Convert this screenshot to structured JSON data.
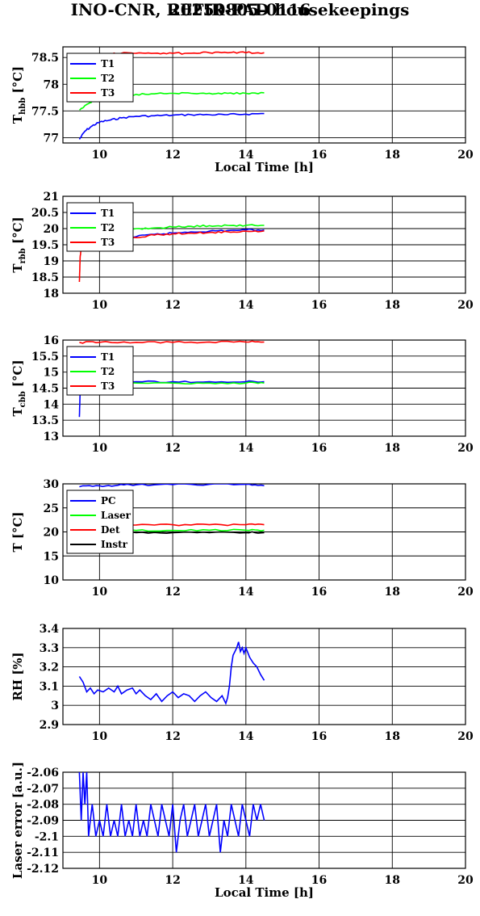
{
  "title": "INO-CNR, REFIR-PAD housekeepings",
  "subtitle": "20250805-0116",
  "chart_data": [
    {
      "type": "line",
      "ylabel_main": "T",
      "ylabel_sub": "hbb",
      "ylabel_unit": "[°C]",
      "xlabel": "Local Time [h]",
      "xlim": [
        9,
        20
      ],
      "ylim": [
        76.9,
        78.7
      ],
      "xticks": [
        "10",
        "12",
        "14",
        "16",
        "18",
        "20"
      ],
      "yticks": [
        "77",
        "77.5",
        "78",
        "78.5"
      ],
      "ytick_values": [
        77,
        77.5,
        78,
        78.5
      ],
      "grid": true,
      "legend": "top-left",
      "series": [
        {
          "name": "T1",
          "color": "#0000ff",
          "x": [
            9.45,
            9.6,
            9.8,
            10.0,
            10.3,
            10.6,
            11.0,
            11.5,
            12.0,
            12.5,
            13.0,
            13.5,
            14.0,
            14.5
          ],
          "y": [
            76.97,
            77.12,
            77.22,
            77.29,
            77.33,
            77.37,
            77.4,
            77.41,
            77.42,
            77.43,
            77.43,
            77.43,
            77.44,
            77.45
          ]
        },
        {
          "name": "T2",
          "color": "#00ff00",
          "x": [
            9.45,
            9.6,
            9.8,
            10.0,
            10.3,
            10.6,
            11.0,
            11.5,
            12.0,
            12.5,
            13.0,
            13.5,
            14.0,
            14.5
          ],
          "y": [
            77.52,
            77.6,
            77.68,
            77.73,
            77.77,
            77.8,
            77.81,
            77.82,
            77.83,
            77.83,
            77.83,
            77.83,
            77.83,
            77.84
          ]
        },
        {
          "name": "T3",
          "color": "#ff0000",
          "x": [
            9.45,
            9.8,
            10.2,
            10.6,
            11.0,
            11.5,
            12.0,
            12.5,
            13.0,
            13.5,
            14.0,
            14.5
          ],
          "y": [
            78.53,
            78.56,
            78.57,
            78.58,
            78.58,
            78.58,
            78.58,
            78.58,
            78.59,
            78.59,
            78.59,
            78.59
          ]
        }
      ]
    },
    {
      "type": "line",
      "ylabel_main": "T",
      "ylabel_sub": "rbb",
      "ylabel_unit": "[°C]",
      "xlabel": "",
      "xlim": [
        9,
        20
      ],
      "ylim": [
        18,
        21
      ],
      "xticks": [
        "10",
        "12",
        "14",
        "16",
        "18",
        "20"
      ],
      "yticks": [
        "18",
        "18.5",
        "19",
        "19.5",
        "20",
        "20.5",
        "21"
      ],
      "ytick_values": [
        18,
        18.5,
        19,
        19.5,
        20,
        20.5,
        21
      ],
      "grid": true,
      "legend": "top-left",
      "series": [
        {
          "name": "T1",
          "color": "#0000ff",
          "x": [
            9.45,
            9.55,
            9.8,
            10.2,
            10.6,
            11.0,
            11.5,
            12.0,
            12.5,
            13.0,
            13.5,
            14.0,
            14.5
          ],
          "y": [
            19.5,
            19.45,
            19.5,
            19.55,
            19.62,
            19.75,
            19.82,
            19.86,
            19.9,
            19.92,
            19.94,
            19.96,
            19.96
          ]
        },
        {
          "name": "T2",
          "color": "#00ff00",
          "x": [
            9.45,
            9.55,
            9.8,
            10.2,
            10.6,
            11.0,
            11.5,
            12.0,
            12.5,
            13.0,
            13.5,
            14.0,
            14.5
          ],
          "y": [
            19.6,
            19.7,
            19.8,
            19.9,
            19.97,
            20.0,
            20.02,
            20.05,
            20.07,
            20.09,
            20.1,
            20.1,
            20.1
          ]
        },
        {
          "name": "T3",
          "color": "#ff0000",
          "x": [
            9.45,
            9.47,
            9.5,
            9.6,
            9.8,
            10.2,
            10.6,
            11.0,
            11.5,
            12.0,
            12.5,
            13.0,
            13.5,
            14.0,
            14.5
          ],
          "y": [
            18.35,
            19.1,
            19.42,
            19.45,
            19.47,
            19.52,
            19.62,
            19.72,
            19.8,
            19.84,
            19.86,
            19.88,
            19.9,
            19.92,
            19.93
          ]
        }
      ]
    },
    {
      "type": "line",
      "ylabel_main": "T",
      "ylabel_sub": "cbb",
      "ylabel_unit": "[°C]",
      "xlabel": "",
      "xlim": [
        9,
        20
      ],
      "ylim": [
        13,
        16
      ],
      "xticks": [
        "10",
        "12",
        "14",
        "16",
        "18",
        "20"
      ],
      "yticks": [
        "13",
        "13.5",
        "14",
        "14.5",
        "15",
        "15.5",
        "16"
      ],
      "ytick_values": [
        13,
        13.5,
        14,
        14.5,
        15,
        15.5,
        16
      ],
      "grid": true,
      "legend": "top-left",
      "series": [
        {
          "name": "T1",
          "color": "#0000ff",
          "x": [
            9.45,
            9.47,
            9.5,
            9.6,
            10.0,
            11.0,
            12.0,
            13.0,
            14.0,
            14.5
          ],
          "y": [
            13.6,
            14.4,
            14.68,
            14.7,
            14.7,
            14.7,
            14.7,
            14.7,
            14.7,
            14.7
          ]
        },
        {
          "name": "T2",
          "color": "#00ff00",
          "x": [
            9.5,
            10.0,
            11.0,
            12.0,
            13.0,
            14.0,
            14.5
          ],
          "y": [
            14.67,
            14.67,
            14.66,
            14.66,
            14.66,
            14.66,
            14.66
          ]
        },
        {
          "name": "T3",
          "color": "#ff0000",
          "x": [
            9.45,
            10.0,
            11.0,
            12.0,
            13.0,
            14.0,
            14.5
          ],
          "y": [
            15.93,
            15.93,
            15.93,
            15.93,
            15.94,
            15.94,
            15.94
          ]
        }
      ]
    },
    {
      "type": "line",
      "ylabel_main": "T [°C]",
      "ylabel_sub": "",
      "ylabel_unit": "",
      "xlabel": "",
      "xlim": [
        9,
        20
      ],
      "ylim": [
        10,
        30
      ],
      "xticks": [
        "10",
        "12",
        "14",
        "16",
        "18",
        "20"
      ],
      "yticks": [
        "10",
        "15",
        "20",
        "25",
        "30"
      ],
      "ytick_values": [
        10,
        15,
        20,
        25,
        30
      ],
      "grid": true,
      "legend": "top-left",
      "series": [
        {
          "name": "PC",
          "color": "#0000ff",
          "x": [
            9.45,
            10.0,
            10.5,
            11.0,
            12.0,
            13.0,
            14.0,
            14.5
          ],
          "y": [
            29.4,
            29.6,
            29.7,
            29.8,
            29.85,
            29.9,
            29.9,
            29.6
          ]
        },
        {
          "name": "Laser",
          "color": "#00ff00",
          "x": [
            9.45,
            10.0,
            11.0,
            12.0,
            13.0,
            14.0,
            14.5
          ],
          "y": [
            20.2,
            20.3,
            20.3,
            20.3,
            20.35,
            20.35,
            20.35
          ]
        },
        {
          "name": "Det",
          "color": "#ff0000",
          "x": [
            9.45,
            10.0,
            11.0,
            12.0,
            13.0,
            14.0,
            14.5
          ],
          "y": [
            21.3,
            21.4,
            21.45,
            21.5,
            21.5,
            21.5,
            21.5
          ]
        },
        {
          "name": "Instr",
          "color": "#000000",
          "x": [
            9.45,
            10.0,
            11.0,
            12.0,
            13.0,
            14.0,
            14.5
          ],
          "y": [
            19.8,
            19.8,
            19.85,
            19.85,
            19.85,
            19.85,
            19.85
          ]
        }
      ]
    },
    {
      "type": "line",
      "ylabel_main": "RH [%]",
      "ylabel_sub": "",
      "ylabel_unit": "",
      "xlabel": "",
      "xlim": [
        9,
        20
      ],
      "ylim": [
        2.9,
        3.4
      ],
      "xticks": [
        "10",
        "12",
        "14",
        "16",
        "18",
        "20"
      ],
      "yticks": [
        "2.9",
        "3",
        "3.1",
        "3.2",
        "3.3",
        "3.4"
      ],
      "ytick_values": [
        2.9,
        3.0,
        3.1,
        3.2,
        3.3,
        3.4
      ],
      "grid": true,
      "legend": "none",
      "series": [
        {
          "name": "",
          "color": "#0000ff",
          "x": [
            9.45,
            9.55,
            9.65,
            9.75,
            9.85,
            9.95,
            10.1,
            10.25,
            10.4,
            10.5,
            10.6,
            10.75,
            10.9,
            11.0,
            11.1,
            11.25,
            11.4,
            11.55,
            11.7,
            11.85,
            12.0,
            12.15,
            12.3,
            12.45,
            12.6,
            12.75,
            12.9,
            13.05,
            13.2,
            13.35,
            13.45,
            13.5,
            13.55,
            13.6,
            13.65,
            13.7,
            13.75,
            13.8,
            13.85,
            13.9,
            13.95,
            14.0,
            14.1,
            14.2,
            14.3,
            14.4,
            14.5
          ],
          "y": [
            3.15,
            3.12,
            3.07,
            3.09,
            3.06,
            3.08,
            3.07,
            3.09,
            3.07,
            3.1,
            3.06,
            3.08,
            3.09,
            3.06,
            3.08,
            3.05,
            3.03,
            3.06,
            3.02,
            3.05,
            3.07,
            3.04,
            3.06,
            3.05,
            3.02,
            3.05,
            3.07,
            3.04,
            3.02,
            3.05,
            3.01,
            3.04,
            3.1,
            3.2,
            3.26,
            3.28,
            3.3,
            3.33,
            3.28,
            3.3,
            3.27,
            3.3,
            3.25,
            3.22,
            3.2,
            3.16,
            3.13
          ]
        }
      ]
    },
    {
      "type": "line",
      "ylabel_main": "Laser error [a.u.]",
      "ylabel_sub": "",
      "ylabel_unit": "",
      "xlabel": "Local Time [h]",
      "xlim": [
        9,
        20
      ],
      "ylim": [
        -2.12,
        -2.06
      ],
      "xticks": [
        "10",
        "12",
        "14",
        "16",
        "18",
        "20"
      ],
      "yticks": [
        "-2.06",
        "-2.07",
        "-2.08",
        "-2.09",
        "-2.1",
        "-2.11",
        "-2.12"
      ],
      "ytick_values": [
        -2.06,
        -2.07,
        -2.08,
        -2.09,
        -2.1,
        -2.11,
        -2.12
      ],
      "grid": true,
      "legend": "none",
      "series": [
        {
          "name": "",
          "color": "#0000ff",
          "x": [
            9.45,
            9.5,
            9.55,
            9.6,
            9.65,
            9.7,
            9.75,
            9.8,
            9.9,
            10.0,
            10.1,
            10.2,
            10.3,
            10.4,
            10.5,
            10.6,
            10.7,
            10.8,
            10.9,
            11.0,
            11.1,
            11.2,
            11.3,
            11.4,
            11.5,
            11.6,
            11.7,
            11.8,
            11.9,
            12.0,
            12.1,
            12.2,
            12.3,
            12.4,
            12.5,
            12.6,
            12.7,
            12.8,
            12.9,
            13.0,
            13.1,
            13.2,
            13.3,
            13.4,
            13.5,
            13.6,
            13.7,
            13.8,
            13.9,
            14.0,
            14.1,
            14.2,
            14.3,
            14.4,
            14.5
          ],
          "y": [
            -2.06,
            -2.09,
            -2.06,
            -2.08,
            -2.06,
            -2.1,
            -2.09,
            -2.08,
            -2.1,
            -2.09,
            -2.1,
            -2.08,
            -2.1,
            -2.09,
            -2.1,
            -2.08,
            -2.1,
            -2.09,
            -2.1,
            -2.08,
            -2.1,
            -2.09,
            -2.1,
            -2.08,
            -2.09,
            -2.1,
            -2.08,
            -2.09,
            -2.1,
            -2.08,
            -2.11,
            -2.09,
            -2.08,
            -2.1,
            -2.09,
            -2.08,
            -2.1,
            -2.09,
            -2.08,
            -2.1,
            -2.09,
            -2.08,
            -2.11,
            -2.09,
            -2.1,
            -2.08,
            -2.09,
            -2.1,
            -2.08,
            -2.09,
            -2.1,
            -2.08,
            -2.09,
            -2.08,
            -2.09
          ]
        }
      ]
    }
  ]
}
